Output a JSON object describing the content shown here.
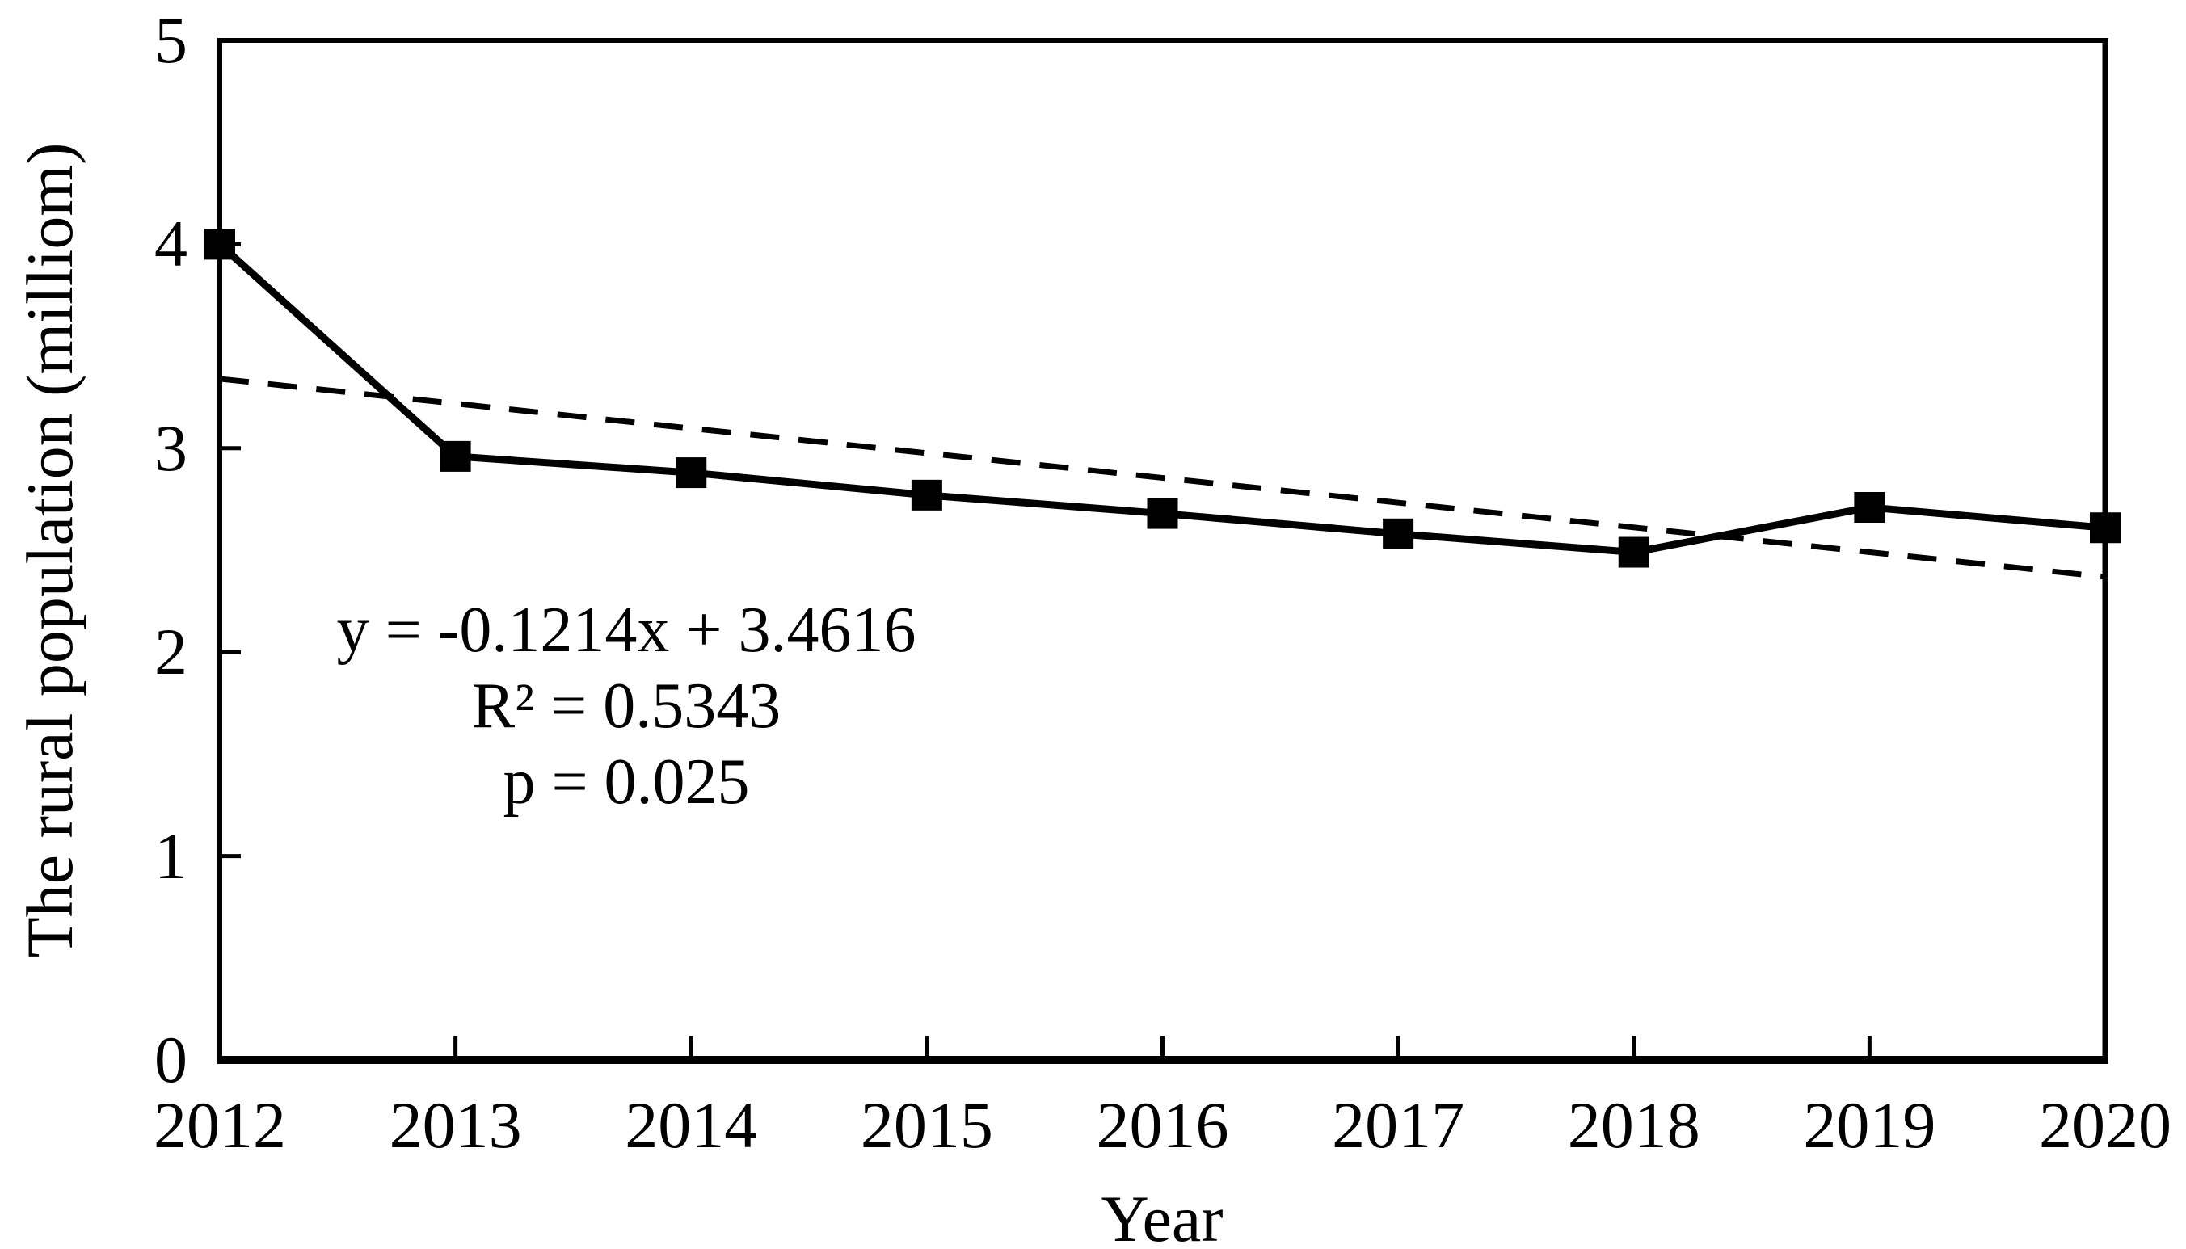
{
  "colors": {
    "foreground": "#000000",
    "background": "#ffffff"
  },
  "chart_data": {
    "type": "line",
    "title": "",
    "xlabel": "Year",
    "ylabel": "The rural population (milliom)",
    "x_categories": [
      "2012",
      "2013",
      "2014",
      "2015",
      "2016",
      "2017",
      "2018",
      "2019",
      "2020"
    ],
    "ylim": [
      0,
      5
    ],
    "yticks": [
      0,
      1,
      2,
      3,
      4,
      5
    ],
    "grid": false,
    "legend": "none",
    "series": [
      {
        "name": "rural-population",
        "values": [
          4.0,
          2.96,
          2.88,
          2.77,
          2.68,
          2.58,
          2.49,
          2.71,
          2.61
        ],
        "line_style": "solid",
        "marker": "square",
        "color": "#000000"
      },
      {
        "name": "linear-trendline",
        "trendline": true,
        "slope": -0.1214,
        "intercept": 3.4616,
        "x_index_range": [
          1,
          9
        ],
        "line_style": "dashed",
        "marker": "none",
        "color": "#000000"
      }
    ],
    "annotation": {
      "equation": "y = -0.1214x + 3.4616",
      "r_squared": "R² = 0.5343",
      "p_value": "p = 0.025"
    }
  }
}
